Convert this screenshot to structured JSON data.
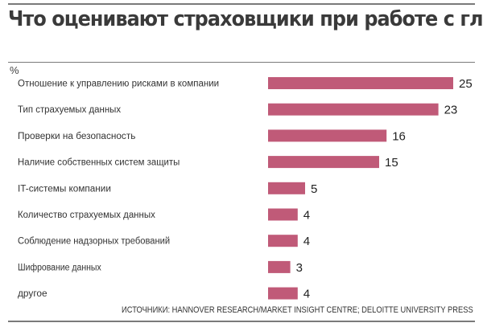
{
  "chart_data": {
    "type": "bar",
    "orientation": "horizontal",
    "title": "Что оценивают страховщики при работе с глобальными киберрисками",
    "unit": "%",
    "categories": [
      "Отношение к управлению рисками в компании",
      "Тип страхуемых данных",
      "Проверки на безопасность",
      "Наличие собственных систем защиты",
      "IT-системы компании",
      "Количество страхуемых данных",
      "Соблюдение надзорных требований",
      "Шифрование данных",
      "другое"
    ],
    "values": [
      25,
      23,
      16,
      15,
      5,
      4,
      4,
      3,
      4
    ],
    "xlim": [
      0,
      25
    ],
    "grid": false,
    "bar_color": "#c05a78",
    "source": "ИСТОЧНИКИ: HANNOVER RESEARCH/MARKET INSIGHT CENTRE; DELOITTE UNIVERSITY PRESS"
  }
}
